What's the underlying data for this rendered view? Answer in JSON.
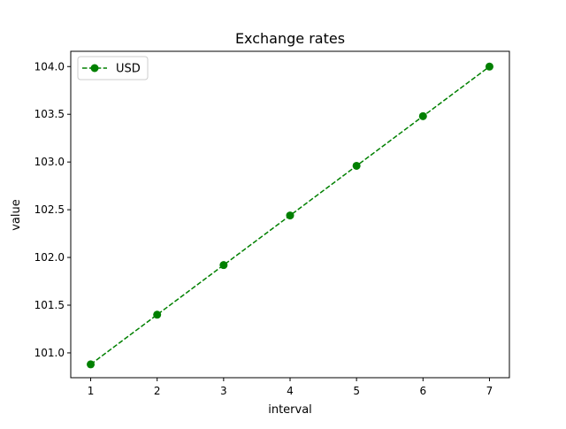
{
  "chart_data": {
    "type": "line",
    "title": "Exchange rates",
    "xlabel": "interval",
    "ylabel": "value",
    "x": [
      1,
      2,
      3,
      4,
      5,
      6,
      7
    ],
    "xticks": [
      1,
      2,
      3,
      4,
      5,
      6,
      7
    ],
    "yticks": [
      101.0,
      101.5,
      102.0,
      102.5,
      103.0,
      103.5,
      104.0
    ],
    "xlim": [
      0.7,
      7.3
    ],
    "ylim": [
      100.74,
      104.16
    ],
    "grid": false,
    "legend_position": "top-left",
    "series": [
      {
        "name": "USD",
        "color": "#008000",
        "line_style": "dashed",
        "marker": "circle",
        "values": [
          100.88,
          101.4,
          101.92,
          102.44,
          102.96,
          103.48,
          104.0
        ]
      }
    ]
  }
}
